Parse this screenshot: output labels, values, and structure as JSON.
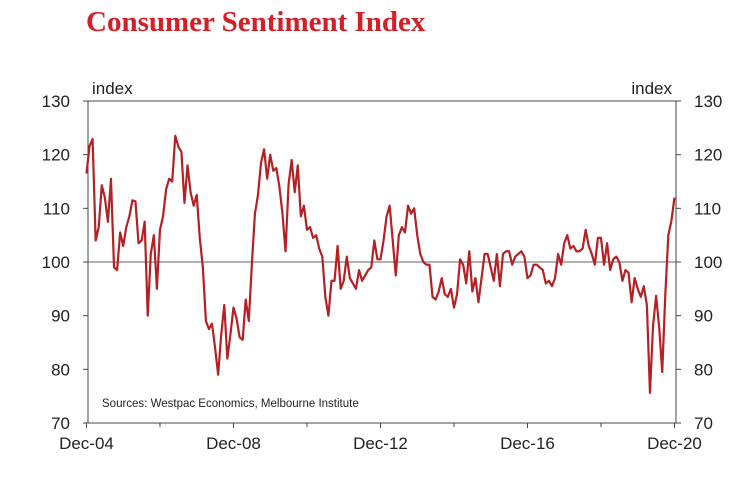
{
  "colors": {
    "title": "#d31f26",
    "series": "#b52025",
    "axis": "#444444",
    "reference_line": "#666666"
  },
  "chart_data": {
    "type": "line",
    "title": "Consumer Sentiment Index",
    "ylabel_left": "index",
    "ylabel_right": "index",
    "source": "Sources: Westpac Economics, Melbourne Institute",
    "ylim": [
      70,
      130
    ],
    "yticks": [
      "130",
      "120",
      "110",
      "100",
      "90",
      "80",
      "70"
    ],
    "x_range": [
      "2004-12",
      "2021-01"
    ],
    "xticks": [
      {
        "date": "2004-12",
        "label": "Dec-04"
      },
      {
        "date": "2008-12",
        "label": "Dec-08"
      },
      {
        "date": "2012-12",
        "label": "Dec-12"
      },
      {
        "date": "2016-12",
        "label": "Dec-16"
      },
      {
        "date": "2020-12",
        "label": "Dec-20"
      }
    ],
    "reference_line": 100,
    "grid": false,
    "legend": "none",
    "series": [
      {
        "points": [
          [
            "2004-12",
            116.5
          ],
          [
            "2005-01",
            121.6
          ],
          [
            "2005-02",
            122.9
          ],
          [
            "2005-03",
            104.0
          ],
          [
            "2005-04",
            106.5
          ],
          [
            "2005-05",
            114.3
          ],
          [
            "2005-06",
            112.0
          ],
          [
            "2005-07",
            107.5
          ],
          [
            "2005-08",
            115.5
          ],
          [
            "2005-09",
            99.0
          ],
          [
            "2005-10",
            98.5
          ],
          [
            "2005-11",
            105.5
          ],
          [
            "2005-12",
            103.0
          ],
          [
            "2006-01",
            106.5
          ],
          [
            "2006-02",
            108.5
          ],
          [
            "2006-03",
            111.5
          ],
          [
            "2006-04",
            111.3
          ],
          [
            "2006-05",
            103.5
          ],
          [
            "2006-06",
            104.0
          ],
          [
            "2006-07",
            107.5
          ],
          [
            "2006-08",
            90.0
          ],
          [
            "2006-09",
            101.5
          ],
          [
            "2006-10",
            105.0
          ],
          [
            "2006-11",
            95.0
          ],
          [
            "2006-12",
            106.0
          ],
          [
            "2007-01",
            108.5
          ],
          [
            "2007-02",
            113.5
          ],
          [
            "2007-03",
            115.5
          ],
          [
            "2007-04",
            115.0
          ],
          [
            "2007-05",
            123.5
          ],
          [
            "2007-06",
            121.5
          ],
          [
            "2007-07",
            120.5
          ],
          [
            "2007-08",
            111.0
          ],
          [
            "2007-09",
            118.0
          ],
          [
            "2007-10",
            113.0
          ],
          [
            "2007-11",
            110.5
          ],
          [
            "2007-12",
            112.5
          ],
          [
            "2008-01",
            104.5
          ],
          [
            "2008-02",
            99.0
          ],
          [
            "2008-03",
            89.0
          ],
          [
            "2008-04",
            87.5
          ],
          [
            "2008-05",
            88.5
          ],
          [
            "2008-06",
            84.0
          ],
          [
            "2008-07",
            79.0
          ],
          [
            "2008-08",
            86.5
          ],
          [
            "2008-09",
            92.0
          ],
          [
            "2008-10",
            82.0
          ],
          [
            "2008-11",
            86.5
          ],
          [
            "2008-12",
            91.5
          ],
          [
            "2008-13",
            89.5
          ],
          [
            "2009-02",
            86.0
          ],
          [
            "2009-03",
            85.5
          ],
          [
            "2009-04",
            93.0
          ],
          [
            "2009-05",
            89.0
          ],
          [
            "2009-06",
            99.5
          ],
          [
            "2009-07",
            109.0
          ],
          [
            "2009-08",
            112.5
          ],
          [
            "2009-09",
            118.5
          ],
          [
            "2009-10",
            121.0
          ],
          [
            "2009-11",
            115.5
          ],
          [
            "2009-12",
            120.0
          ],
          [
            "2010-01",
            117.0
          ],
          [
            "2010-02",
            117.5
          ],
          [
            "2010-03",
            114.0
          ],
          [
            "2010-04",
            109.0
          ],
          [
            "2010-05",
            102.0
          ],
          [
            "2010-06",
            114.5
          ],
          [
            "2010-07",
            119.0
          ],
          [
            "2010-08",
            113.0
          ],
          [
            "2010-09",
            118.0
          ],
          [
            "2010-10",
            108.5
          ],
          [
            "2010-11",
            110.5
          ],
          [
            "2010-12",
            106.0
          ],
          [
            "2011-01",
            106.5
          ],
          [
            "2011-02",
            104.5
          ],
          [
            "2011-03",
            105.0
          ],
          [
            "2011-04",
            102.5
          ],
          [
            "2011-05",
            101.0
          ],
          [
            "2011-06",
            93.5
          ],
          [
            "2011-07",
            90.0
          ],
          [
            "2011-08",
            96.5
          ],
          [
            "2011-09",
            96.5
          ],
          [
            "2011-10",
            103.0
          ],
          [
            "2011-11",
            95.0
          ],
          [
            "2011-12",
            96.5
          ],
          [
            "2012-01",
            101.0
          ],
          [
            "2012-02",
            97.0
          ],
          [
            "2012-03",
            96.0
          ],
          [
            "2012-04",
            95.0
          ],
          [
            "2012-05",
            98.5
          ],
          [
            "2012-06",
            96.5
          ],
          [
            "2012-07",
            97.5
          ],
          [
            "2012-08",
            98.5
          ],
          [
            "2012-09",
            99.0
          ],
          [
            "2012-10",
            104.0
          ],
          [
            "2012-11",
            100.5
          ],
          [
            "2012-12",
            100.5
          ],
          [
            "2013-01",
            104.0
          ],
          [
            "2013-02",
            108.5
          ],
          [
            "2013-03",
            110.5
          ],
          [
            "2013-04",
            104.0
          ],
          [
            "2013-05",
            97.5
          ],
          [
            "2013-06",
            105.0
          ],
          [
            "2013-07",
            106.5
          ],
          [
            "2013-08",
            105.5
          ],
          [
            "2013-09",
            110.5
          ],
          [
            "2013-10",
            109.0
          ],
          [
            "2013-11",
            110.0
          ],
          [
            "2013-12",
            105.0
          ],
          [
            "2014-01",
            101.5
          ],
          [
            "2014-02",
            100.0
          ],
          [
            "2014-03",
            99.5
          ],
          [
            "2014-04",
            99.5
          ],
          [
            "2014-05",
            93.5
          ],
          [
            "2014-06",
            93.0
          ],
          [
            "2014-07",
            94.5
          ],
          [
            "2014-08",
            97.0
          ],
          [
            "2014-09",
            94.0
          ],
          [
            "2014-10",
            93.5
          ],
          [
            "2014-11",
            95.0
          ],
          [
            "2014-12",
            91.5
          ],
          [
            "2015-01",
            94.0
          ],
          [
            "2015-02",
            100.5
          ],
          [
            "2015-03",
            99.5
          ],
          [
            "2015-04",
            96.0
          ],
          [
            "2015-05",
            102.0
          ],
          [
            "2015-06",
            94.5
          ],
          [
            "2015-07",
            97.0
          ],
          [
            "2015-08",
            92.5
          ],
          [
            "2015-09",
            97.0
          ],
          [
            "2015-10",
            101.5
          ],
          [
            "2015-11",
            101.5
          ],
          [
            "2015-12",
            99.0
          ],
          [
            "2016-01",
            96.5
          ],
          [
            "2016-02",
            101.5
          ],
          [
            "2016-03",
            95.5
          ],
          [
            "2016-04",
            101.5
          ],
          [
            "2016-05",
            102.0
          ],
          [
            "2016-06",
            102.0
          ],
          [
            "2016-07",
            99.5
          ],
          [
            "2016-08",
            101.0
          ],
          [
            "2016-09",
            101.5
          ],
          [
            "2016-10",
            102.0
          ],
          [
            "2016-11",
            101.0
          ],
          [
            "2016-12",
            97.0
          ],
          [
            "2017-01",
            97.5
          ],
          [
            "2017-02",
            99.5
          ],
          [
            "2017-03",
            99.5
          ],
          [
            "2017-04",
            99.0
          ],
          [
            "2017-05",
            98.5
          ],
          [
            "2017-06",
            96.0
          ],
          [
            "2017-07",
            96.5
          ],
          [
            "2017-08",
            95.5
          ],
          [
            "2017-09",
            97.0
          ],
          [
            "2017-10",
            101.5
          ],
          [
            "2017-11",
            99.5
          ],
          [
            "2017-12",
            103.5
          ],
          [
            "2018-01",
            105.0
          ],
          [
            "2018-02",
            102.5
          ],
          [
            "2018-03",
            103.0
          ],
          [
            "2018-04",
            102.0
          ],
          [
            "2018-05",
            102.0
          ],
          [
            "2018-06",
            102.5
          ],
          [
            "2018-07",
            106.0
          ],
          [
            "2018-08",
            103.0
          ],
          [
            "2018-09",
            101.5
          ],
          [
            "2018-10",
            99.5
          ],
          [
            "2018-11",
            104.5
          ],
          [
            "2018-12",
            104.5
          ],
          [
            "2019-01",
            99.5
          ],
          [
            "2019-02",
            103.5
          ],
          [
            "2019-03",
            98.5
          ],
          [
            "2019-04",
            100.5
          ],
          [
            "2019-05",
            101.0
          ],
          [
            "2019-06",
            100.0
          ],
          [
            "2019-07",
            96.5
          ],
          [
            "2019-08",
            98.5
          ],
          [
            "2019-09",
            98.0
          ],
          [
            "2019-10",
            92.5
          ],
          [
            "2019-11",
            97.0
          ],
          [
            "2019-12",
            95.0
          ],
          [
            "2020-01",
            93.5
          ],
          [
            "2020-02",
            95.5
          ],
          [
            "2020-03",
            91.9
          ],
          [
            "2020-04",
            75.6
          ],
          [
            "2020-05",
            88.1
          ],
          [
            "2020-06",
            93.7
          ],
          [
            "2020-07",
            87.9
          ],
          [
            "2020-08",
            79.5
          ],
          [
            "2020-09",
            93.8
          ],
          [
            "2020-10",
            105.0
          ],
          [
            "2020-11",
            107.7
          ],
          [
            "2020-12",
            112.0
          ]
        ]
      }
    ]
  }
}
